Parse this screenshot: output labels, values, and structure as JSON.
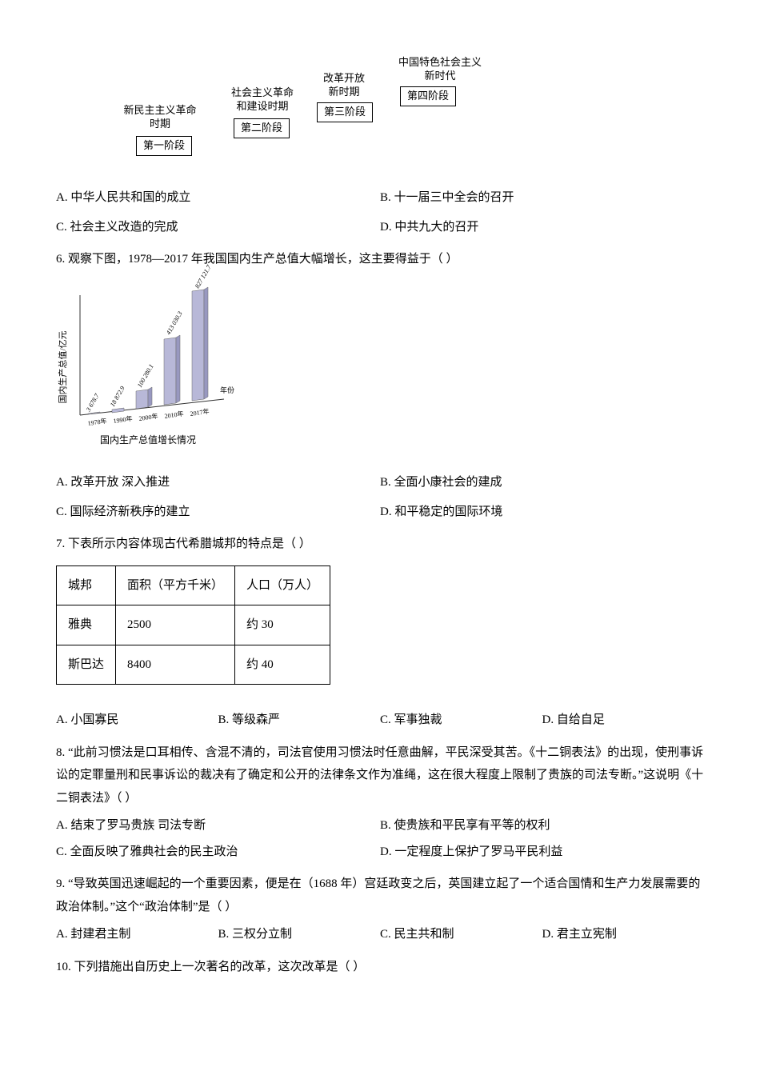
{
  "q5": {
    "diagram": {
      "boxes": [
        {
          "label": "第一阶段",
          "top_text": "新民主主义革命\n时期"
        },
        {
          "label": "第二阶段",
          "top_text": "社会主义革命\n和建设时期"
        },
        {
          "label": "第三阶段",
          "top_text": "改革开放\n新时期"
        },
        {
          "label": "第四阶段",
          "top_text": "中国特色社会主义\n新时代"
        }
      ]
    },
    "options": {
      "A": "A.  中华人民共和国的成立",
      "B": "B.  十一届三中全会的召开",
      "C": "C.  社会主义改造的完成",
      "D": "D.  中共九大的召开"
    }
  },
  "q6": {
    "text": "6. 观察下图，1978—2017 年我国国内生产总值大幅增长，这主要得益于（    ）",
    "chart": {
      "type": "bar-3d",
      "ylabel": "国内生产总值/亿元",
      "xlabel": "年份",
      "caption": "国内生产总值增长情况",
      "categories": [
        "1978年",
        "1990年",
        "2000年",
        "2010年",
        "2017年"
      ],
      "values": [
        3678.7,
        18872.9,
        100280.1,
        413030.3,
        827121.7
      ],
      "value_labels": [
        "3 678.7",
        "18 872.9",
        "100 280.1",
        "413 030.3",
        "827 121.7"
      ],
      "bar_color": "#b8b8d8",
      "background_color": "#ffffff",
      "axis_color": "#333333",
      "ylim": [
        0,
        900000
      ],
      "aspect": "portrait"
    },
    "options": {
      "A": "A.  改革开放   深入推进",
      "B": "B.  全面小康社会的建成",
      "C": "C.  国际经济新秩序的建立",
      "D": "D.  和平稳定的国际环境"
    }
  },
  "q7": {
    "text": "7. 下表所示内容体现古代希腊城邦的特点是（    ）",
    "table": {
      "columns": [
        "城邦",
        "面积（平方千米）",
        "人口（万人）"
      ],
      "rows": [
        [
          "雅典",
          "2500",
          "约 30"
        ],
        [
          "斯巴达",
          "8400",
          "约 40"
        ]
      ]
    },
    "options": {
      "A": "A.  小国寡民",
      "B": "B.  等级森严",
      "C": "C.  军事独裁",
      "D": "D.  自给自足"
    }
  },
  "q8": {
    "text": "8. “此前习惯法是口耳相传、含混不清的，司法官使用习惯法时任意曲解，平民深受其苦。《十二铜表法》的出现，使刑事诉讼的定罪量刑和民事诉讼的裁决有了确定和公开的法律条文作为准绳，这在很大程度上限制了贵族的司法专断。”这说明《十二铜表法》（    ）",
    "options": {
      "A": "A.  结束了罗马贵族   司法专断",
      "B": "B.  使贵族和平民享有平等的权利",
      "C": "C.  全面反映了雅典社会的民主政治",
      "D": "D.  一定程度上保护了罗马平民利益"
    }
  },
  "q9": {
    "text": "9. “导致英国迅速崛起的一个重要因素，便是在（1688 年）宫廷政变之后，英国建立起了一个适合国情和生产力发展需要的政治体制。”这个“政治体制”是（    ）",
    "options": {
      "A": "A.  封建君主制",
      "B": "B.  三权分立制",
      "C": "C.  民主共和制",
      "D": "D.  君主立宪制"
    }
  },
  "q10": {
    "text": "10. 下列措施出自历史上一次著名的改革，这次改革是（    ）"
  }
}
